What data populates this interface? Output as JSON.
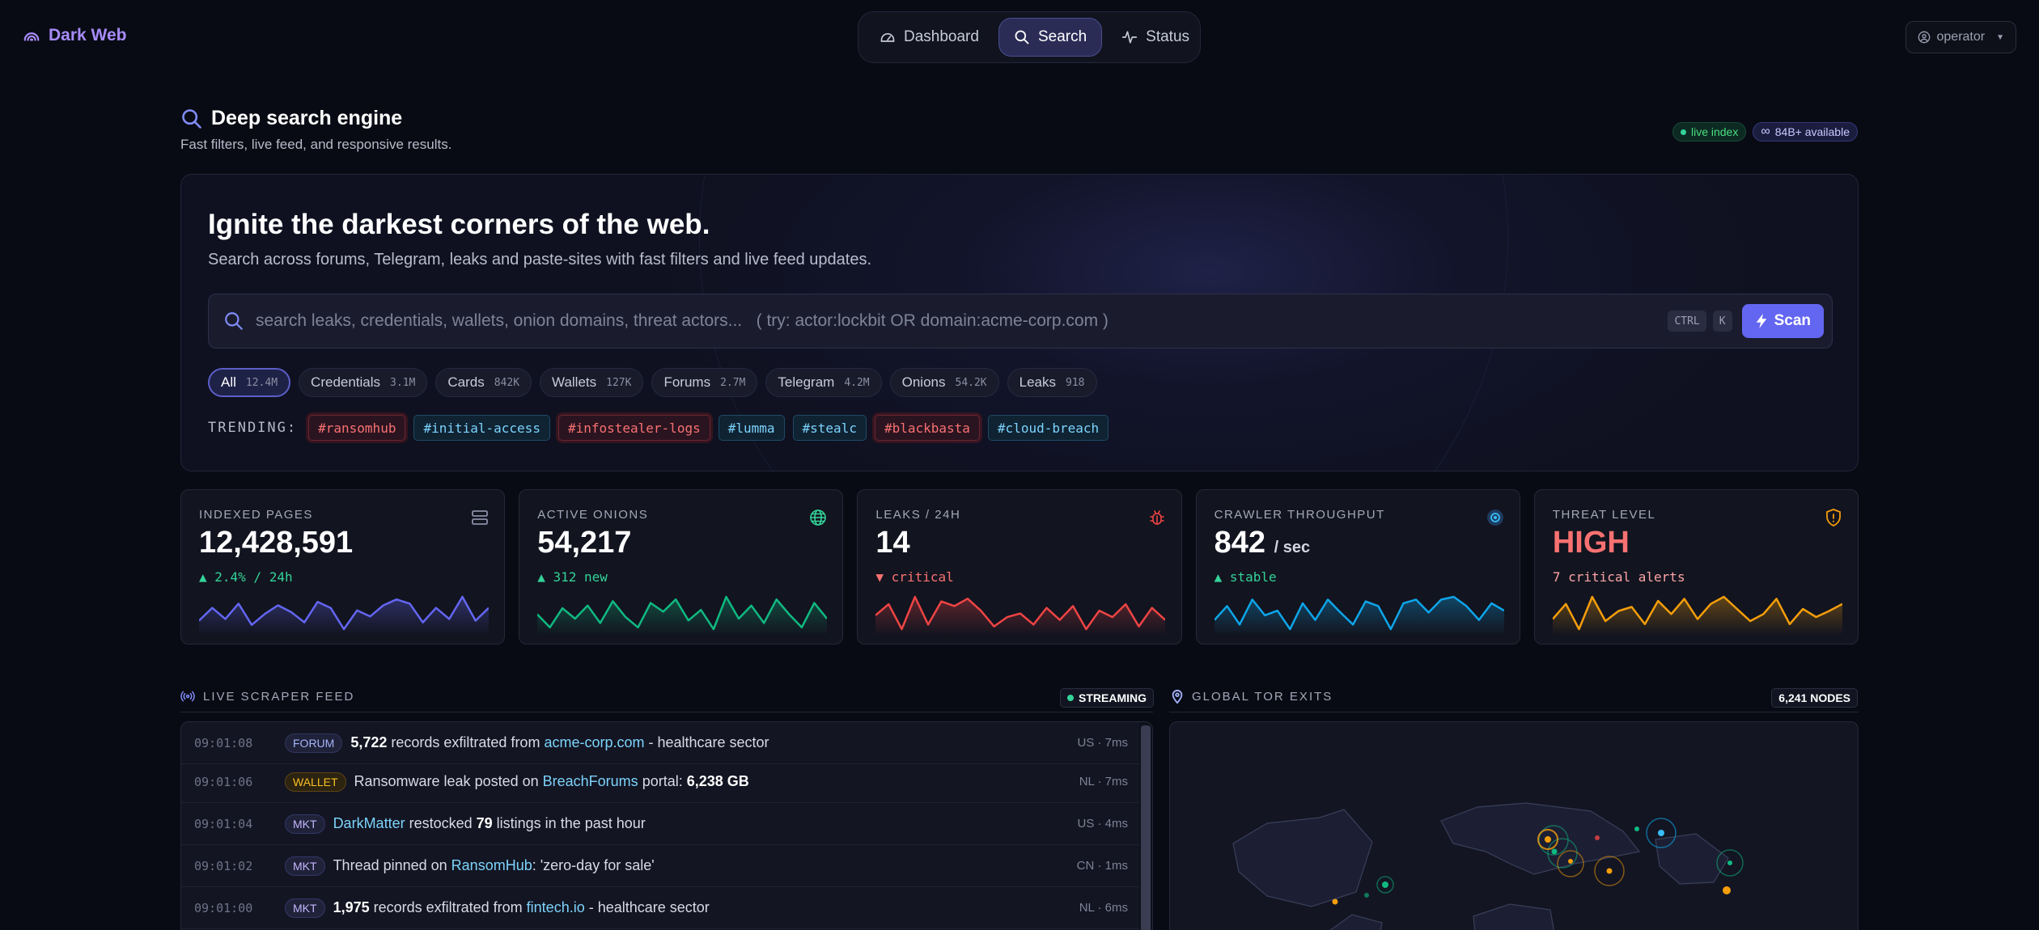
{
  "brand": {
    "name": "Dark Web"
  },
  "nav": {
    "items": [
      "Dashboard",
      "Search",
      "Status"
    ],
    "active": "Search"
  },
  "user": {
    "label": "operator"
  },
  "page": {
    "title": "Deep search engine",
    "subtitle": "Fast filters, live feed, and responsive results."
  },
  "badges": {
    "live": "live index",
    "available": "84B+ available"
  },
  "hero": {
    "title": "Ignite the darkest corners of the web.",
    "subtitle": "Search across forums, Telegram, leaks and paste-sites with fast filters and live feed updates.",
    "search_placeholder": "search leaks, credentials, wallets, onion domains, threat actors...   ( try: actor:lockbit OR domain:acme-corp.com )",
    "search_value": "",
    "kbd1": "CTRL",
    "kbd2": "K",
    "scan_label": "Scan"
  },
  "filters": [
    {
      "label": "All",
      "count": "12.4M"
    },
    {
      "label": "Credentials",
      "count": "3.1M"
    },
    {
      "label": "Cards",
      "count": "842K"
    },
    {
      "label": "Wallets",
      "count": "127K"
    },
    {
      "label": "Forums",
      "count": "2.7M"
    },
    {
      "label": "Telegram",
      "count": "4.2M"
    },
    {
      "label": "Onions",
      "count": "54.2K"
    },
    {
      "label": "Leaks",
      "count": "918"
    }
  ],
  "trending": {
    "label": "TRENDING:",
    "tags": [
      "#ransomhub",
      "#initial-access",
      "#infostealer-logs",
      "#lumma",
      "#stealc",
      "#blackbasta",
      "#cloud-breach"
    ]
  },
  "stats": [
    {
      "label": "INDEXED PAGES",
      "value": "12,428,591",
      "unit": "",
      "delta": "▲ 2.4% / 24h",
      "color": "#6366f1",
      "series": [
        40,
        55,
        42,
        60,
        35,
        48,
        58,
        50,
        38,
        62,
        55,
        30,
        52,
        45,
        58,
        65,
        60,
        38,
        55,
        42,
        68,
        40,
        55
      ]
    },
    {
      "label": "ACTIVE ONIONS",
      "value": "54,217",
      "unit": "",
      "delta": "▲ 312 new",
      "color": "#10b981",
      "series": [
        45,
        30,
        52,
        40,
        55,
        35,
        60,
        42,
        30,
        58,
        48,
        62,
        38,
        50,
        28,
        65,
        40,
        55,
        35,
        62,
        45,
        30,
        58,
        40
      ]
    },
    {
      "label": "LEAKS / 24H",
      "value": "14",
      "unit": "",
      "delta": "▼ critical",
      "color": "#ef4444",
      "series": [
        50,
        62,
        35,
        70,
        40,
        65,
        60,
        68,
        55,
        38,
        48,
        52,
        40,
        58,
        45,
        60,
        35,
        55,
        48,
        62,
        38,
        58,
        45
      ]
    },
    {
      "label": "CRAWLER THROUGHPUT",
      "value": "842",
      "unit": "/ sec",
      "delta": "▲ stable",
      "color": "#0ea5e9",
      "series": [
        40,
        55,
        35,
        62,
        45,
        50,
        30,
        58,
        40,
        62,
        48,
        35,
        60,
        55,
        30,
        58,
        62,
        48,
        62,
        65,
        55,
        40,
        58,
        50
      ]
    },
    {
      "label": "THREAT LEVEL",
      "value": "HIGH",
      "unit": "",
      "delta": "7 critical alerts",
      "color": "#f59e0b",
      "series": [
        40,
        55,
        30,
        62,
        38,
        48,
        52,
        35,
        58,
        45,
        60,
        40,
        55,
        62,
        50,
        38,
        45,
        60,
        35,
        50,
        42,
        48,
        55
      ]
    }
  ],
  "feed": {
    "title": "LIVE SCRAPER FEED",
    "status": "STREAMING",
    "rows": [
      {
        "time": "09:01:08",
        "type": "FORUM",
        "kind": "forum",
        "pre_b": "5,722",
        "text1": " records exfiltrated from ",
        "link": "acme-corp.com",
        "text2": " - healthcare sector",
        "b2": "",
        "meta": "US · 7ms"
      },
      {
        "time": "09:01:06",
        "type": "WALLET",
        "kind": "wallet",
        "pre_b": "",
        "text1": "Ransomware leak posted on ",
        "link": "BreachForums",
        "text2": " portal: ",
        "b2": "6,238 GB",
        "meta": "NL · 7ms"
      },
      {
        "time": "09:01:04",
        "type": "MKT",
        "kind": "mkt",
        "pre_b": "",
        "text1": "",
        "link": "DarkMatter",
        "text2": " restocked ",
        "b2": "79",
        "text3": " listings in the past hour",
        "meta": "US · 4ms"
      },
      {
        "time": "09:01:02",
        "type": "MKT",
        "kind": "mkt",
        "pre_b": "",
        "text1": "Thread pinned on ",
        "link": "RansomHub",
        "text2": ": 'zero-day for sale'",
        "b2": "",
        "meta": "CN · 1ms"
      },
      {
        "time": "09:01:00",
        "type": "MKT",
        "kind": "mkt",
        "pre_b": "1,975",
        "text1": " records exfiltrated from ",
        "link": "fintech.io",
        "text2": " - healthcare sector",
        "b2": "",
        "meta": "NL · 6ms"
      }
    ]
  },
  "map": {
    "title": "GLOBAL TOR EXITS",
    "nodes": "6,241 NODES"
  },
  "colors": {
    "accent": "#6366f1",
    "brand": "#a78bfa",
    "bg": "#090b14"
  }
}
